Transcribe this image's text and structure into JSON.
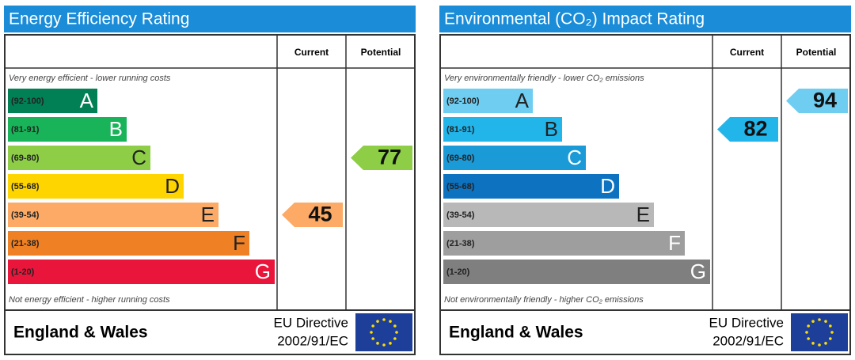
{
  "chart_data": [
    {
      "type": "epc",
      "title": "Energy Efficiency Rating",
      "columns": [
        "Current",
        "Potential"
      ],
      "top_note": "Very energy efficient - lower running costs",
      "bottom_note": "Not energy efficient - higher running costs",
      "bands": [
        {
          "range": "(92-100)",
          "letter": "A",
          "color": "#008054",
          "text": "#ffffff"
        },
        {
          "range": "(81-91)",
          "letter": "B",
          "color": "#19b459",
          "text": "#ffffff"
        },
        {
          "range": "(69-80)",
          "letter": "C",
          "color": "#8dce46",
          "text": "#222222"
        },
        {
          "range": "(55-68)",
          "letter": "D",
          "color": "#ffd500",
          "text": "#222222"
        },
        {
          "range": "(39-54)",
          "letter": "E",
          "color": "#fcaa65",
          "text": "#222222"
        },
        {
          "range": "(21-38)",
          "letter": "F",
          "color": "#ef8023",
          "text": "#222222"
        },
        {
          "range": "(1-20)",
          "letter": "G",
          "color": "#e9153b",
          "text": "#ffffff"
        }
      ],
      "current": 45,
      "potential": 77,
      "region": "England & Wales",
      "directive": "EU Directive",
      "directive_code": "2002/91/EC"
    },
    {
      "type": "epc",
      "title": "Environmental (CO₂) Impact Rating",
      "columns": [
        "Current",
        "Potential"
      ],
      "top_note": "Very environmentally friendly - lower CO₂ emissions",
      "bottom_note": "Not environmentally friendly - higher CO₂ emissions",
      "bands": [
        {
          "range": "(92-100)",
          "letter": "A",
          "color": "#6fcdf2",
          "text": "#222222"
        },
        {
          "range": "(81-91)",
          "letter": "B",
          "color": "#22b5ea",
          "text": "#222222"
        },
        {
          "range": "(69-80)",
          "letter": "C",
          "color": "#1a9ad7",
          "text": "#ffffff"
        },
        {
          "range": "(55-68)",
          "letter": "D",
          "color": "#0d72c0",
          "text": "#ffffff"
        },
        {
          "range": "(39-54)",
          "letter": "E",
          "color": "#b8b8b8",
          "text": "#222222"
        },
        {
          "range": "(21-38)",
          "letter": "F",
          "color": "#9e9e9e",
          "text": "#ffffff"
        },
        {
          "range": "(1-20)",
          "letter": "G",
          "color": "#7f7f7f",
          "text": "#ffffff"
        }
      ],
      "current": 82,
      "potential": 94,
      "region": "England & Wales",
      "directive": "EU Directive",
      "directive_code": "2002/91/EC"
    }
  ]
}
